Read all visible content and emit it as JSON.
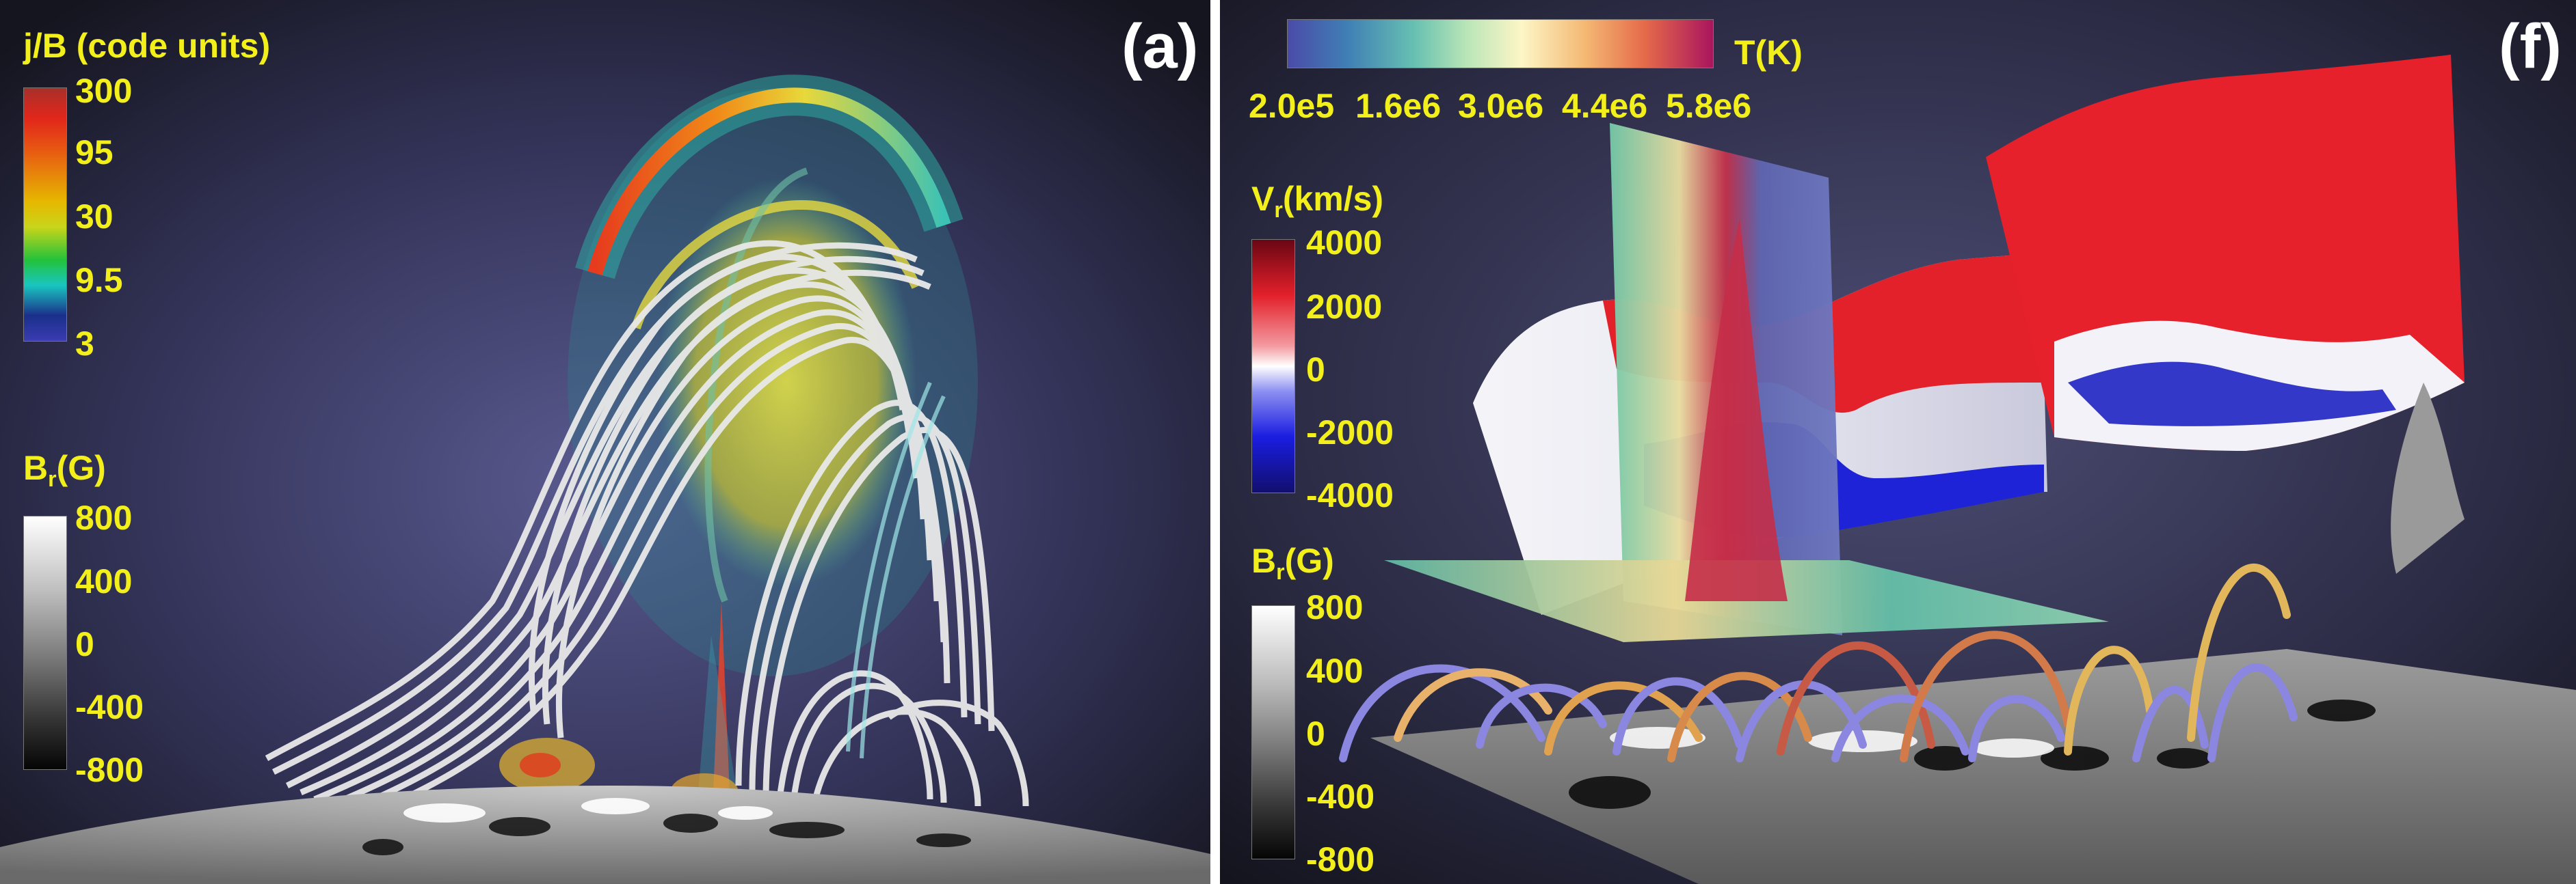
{
  "panels": [
    {
      "label": "(a)",
      "colorbars": [
        {
          "title": "j/B (code units)",
          "ticks": [
            "300",
            "95",
            "30",
            "9.5",
            "3"
          ]
        },
        {
          "title_main": "B",
          "title_sub": "r",
          "title_unit": "(G)",
          "ticks": [
            "800",
            "400",
            "0",
            "-400",
            "-800"
          ]
        }
      ]
    },
    {
      "label": "(f)",
      "colorbars": [
        {
          "title": "T(K)",
          "ticks": [
            "2.0e5",
            "1.6e6",
            "3.0e6",
            "4.4e6",
            "5.8e6"
          ]
        },
        {
          "title_main": "V",
          "title_sub": "r",
          "title_unit": "(km/s)",
          "ticks": [
            "4000",
            "2000",
            "0",
            "-2000",
            "-4000"
          ]
        },
        {
          "title_main": "B",
          "title_sub": "r",
          "title_unit": "(G)",
          "ticks": [
            "800",
            "400",
            "0",
            "-400",
            "-800"
          ]
        }
      ]
    }
  ],
  "colors": {
    "label_yellow": "#f2ef1a",
    "background_dark": "#1a1a2e",
    "background_glow": "#4a4a78"
  }
}
